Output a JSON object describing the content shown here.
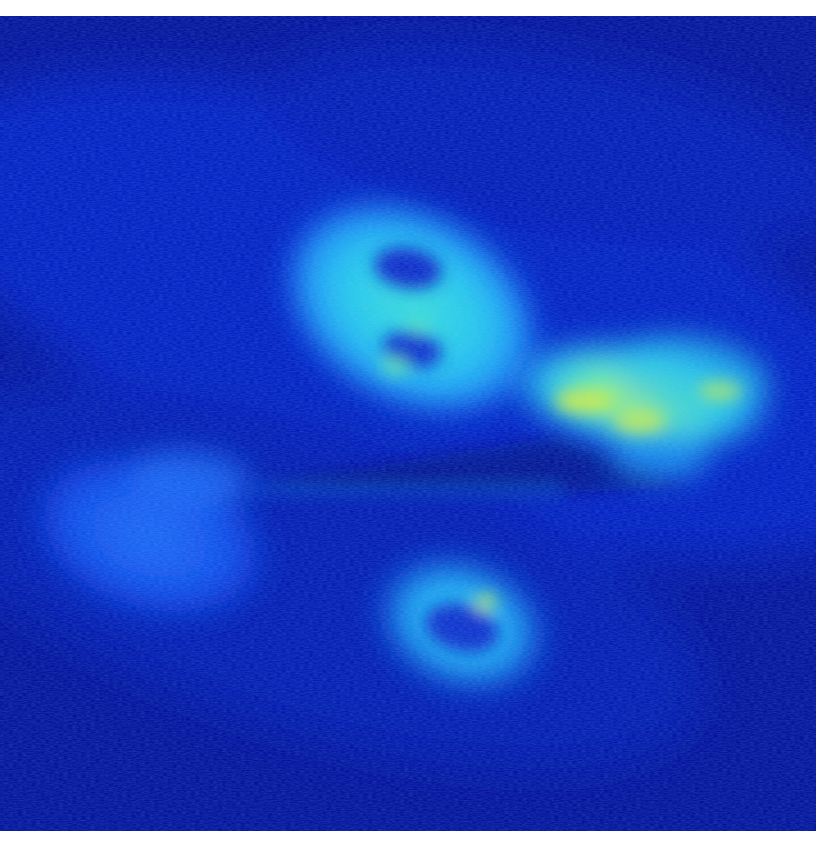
{
  "image": {
    "kind": "false-color intensity map",
    "colormap": "jet",
    "colors": {
      "background": "#00129a",
      "deep_blue": "#0022c8",
      "mid_blue": "#0a4cf0",
      "cyan_blue": "#1a8cf6",
      "cyan": "#22d2ee",
      "green": "#6ef0a0",
      "yellow": "#d8f03a",
      "page_background": "#ffffff"
    },
    "regions": [
      {
        "name": "upper-oval-with-two-dark-holes",
        "peak_level": "cyan"
      },
      {
        "name": "right-bowtie-lobe",
        "peak_level": "yellow"
      },
      {
        "name": "left-faint-blob",
        "peak_level": "blue"
      },
      {
        "name": "lower-oval-with-dark-hole",
        "peak_level": "cyan"
      }
    ]
  }
}
